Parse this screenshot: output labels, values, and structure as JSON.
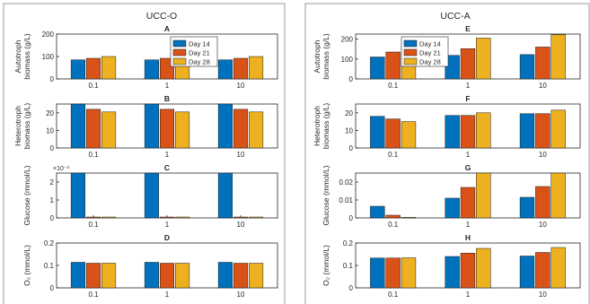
{
  "figure": {
    "left_title": "UCC-O",
    "right_title": "UCC-A",
    "legend": [
      "Day 14",
      "Day 21",
      "Day 28"
    ],
    "series_colors": [
      "#0072BD",
      "#D95319",
      "#EDB120"
    ]
  },
  "chart_data": [
    {
      "type": "bar",
      "panel": "UCC-O",
      "title": "A",
      "ylabel_lines": [
        "Autotroph",
        "biomass (g/L)"
      ],
      "categories": [
        "0.1",
        "1",
        "10"
      ],
      "ylim": [
        0,
        200
      ],
      "yticks": [
        "0",
        "100",
        "200"
      ],
      "series": [
        {
          "name": "Day 14",
          "values": [
            85,
            85,
            85
          ]
        },
        {
          "name": "Day 21",
          "values": [
            92,
            92,
            92
          ]
        },
        {
          "name": "Day 28",
          "values": [
            100,
            100,
            100
          ]
        }
      ],
      "legend": "top-center"
    },
    {
      "type": "bar",
      "panel": "UCC-O",
      "title": "B",
      "ylabel_lines": [
        "Heterotroph",
        "biomass (g/L)"
      ],
      "categories": [
        "0.1",
        "1",
        "10"
      ],
      "ylim": [
        0,
        25
      ],
      "yticks": [
        "0",
        "10",
        "20"
      ],
      "series": [
        {
          "name": "Day 14",
          "values": [
            25,
            25,
            25
          ]
        },
        {
          "name": "Day 21",
          "values": [
            22,
            22,
            22
          ]
        },
        {
          "name": "Day 28",
          "values": [
            20.5,
            20.5,
            20.5
          ]
        }
      ]
    },
    {
      "type": "bar",
      "panel": "UCC-O",
      "title": "C",
      "ylabel_lines": [
        "Glucose (mmol/L)"
      ],
      "categories": [
        "0.1",
        "1",
        "10"
      ],
      "ylim": [
        0,
        0.0025
      ],
      "yticks": [
        "0",
        "1",
        "2"
      ],
      "exponent_label": "×10⁻³",
      "series": [
        {
          "name": "Day 14",
          "values": [
            0.0025,
            0.0025,
            0.0025
          ]
        },
        {
          "name": "Day 21",
          "values": [
            5e-05,
            5e-05,
            5e-05
          ]
        },
        {
          "name": "Day 28",
          "values": [
            5e-05,
            5e-05,
            5e-05
          ]
        }
      ]
    },
    {
      "type": "bar",
      "panel": "UCC-O",
      "title": "D",
      "ylabel_lines": [
        "O₂ (mmol/L)"
      ],
      "categories": [
        "0.1",
        "1",
        "10"
      ],
      "ylim": [
        0,
        0.2
      ],
      "yticks": [
        "0",
        "0.1",
        "0.2"
      ],
      "series": [
        {
          "name": "Day 14",
          "values": [
            0.114,
            0.114,
            0.114
          ]
        },
        {
          "name": "Day 21",
          "values": [
            0.11,
            0.11,
            0.11
          ]
        },
        {
          "name": "Day 28",
          "values": [
            0.11,
            0.11,
            0.11
          ]
        }
      ]
    },
    {
      "type": "bar",
      "panel": "UCC-A",
      "title": "E",
      "ylabel_lines": [
        "Autotroph",
        "biomass (g/L)"
      ],
      "categories": [
        "0.1",
        "1",
        "10"
      ],
      "ylim": [
        0,
        225
      ],
      "yticks": [
        "0",
        "100",
        "200"
      ],
      "series": [
        {
          "name": "Day 14",
          "values": [
            110,
            118,
            122
          ]
        },
        {
          "name": "Day 21",
          "values": [
            135,
            152,
            160
          ]
        },
        {
          "name": "Day 28",
          "values": [
            165,
            205,
            222
          ]
        }
      ],
      "legend": "top-left"
    },
    {
      "type": "bar",
      "panel": "UCC-A",
      "title": "F",
      "ylabel_lines": [
        "Heterotroph",
        "biomass (g/L)"
      ],
      "categories": [
        "0.1",
        "1",
        "10"
      ],
      "ylim": [
        0,
        25
      ],
      "yticks": [
        "0",
        "10",
        "20"
      ],
      "series": [
        {
          "name": "Day 14",
          "values": [
            18,
            18.5,
            19.5
          ]
        },
        {
          "name": "Day 21",
          "values": [
            16.5,
            18.5,
            19.5
          ]
        },
        {
          "name": "Day 28",
          "values": [
            15,
            20,
            21.5
          ]
        }
      ]
    },
    {
      "type": "bar",
      "panel": "UCC-A",
      "title": "G",
      "ylabel_lines": [
        "Glucose (mmol/L)"
      ],
      "categories": [
        "0.1",
        "1",
        "10"
      ],
      "ylim": [
        0,
        0.025
      ],
      "yticks": [
        "0",
        "0.01",
        "0.02"
      ],
      "series": [
        {
          "name": "Day 14",
          "values": [
            0.0065,
            0.011,
            0.0115
          ]
        },
        {
          "name": "Day 21",
          "values": [
            0.0015,
            0.017,
            0.0175
          ]
        },
        {
          "name": "Day 28",
          "values": [
            0.0002,
            0.025,
            0.025
          ]
        }
      ]
    },
    {
      "type": "bar",
      "panel": "UCC-A",
      "title": "H",
      "ylabel_lines": [
        "O₂ (mmol/L)"
      ],
      "categories": [
        "0.1",
        "1",
        "10"
      ],
      "ylim": [
        0,
        0.2
      ],
      "yticks": [
        "0",
        "0.1",
        "0.2"
      ],
      "series": [
        {
          "name": "Day 14",
          "values": [
            0.133,
            0.14,
            0.142
          ]
        },
        {
          "name": "Day 21",
          "values": [
            0.133,
            0.155,
            0.158
          ]
        },
        {
          "name": "Day 28",
          "values": [
            0.134,
            0.176,
            0.18
          ]
        }
      ]
    }
  ]
}
